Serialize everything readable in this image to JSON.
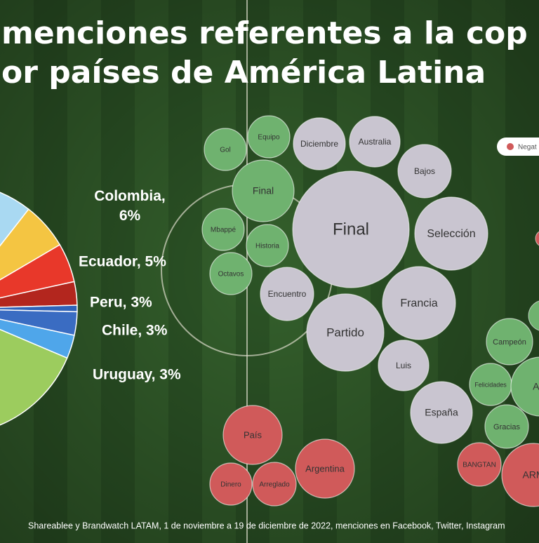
{
  "title": [
    "menciones referentes a la cop",
    "or países de América Latina"
  ],
  "chart_data": {
    "type": "pie",
    "categories": [
      "Colombia",
      "Ecuador",
      "Peru",
      "Chile",
      "Uruguay"
    ],
    "values": [
      6,
      5,
      3,
      3,
      3
    ],
    "value_labels": [
      "Colombia,\n6%",
      "Ecuador, 5%",
      "Peru, 3%",
      "Chile, 3%",
      "Uruguay, 3%"
    ],
    "colors": [
      "#f4c542",
      "#e8382a",
      "#b3261e",
      "#3a6cc2",
      "#4fa6ea"
    ]
  },
  "bubbles": {
    "legend": "Negat",
    "groups": {
      "positive": "#6fb26f",
      "neutral": "#c9c5d0",
      "negative": "#d05a5a"
    },
    "items": [
      {
        "label": "Gol",
        "group": "positive"
      },
      {
        "label": "Equipo",
        "group": "positive"
      },
      {
        "label": "Final",
        "group": "positive"
      },
      {
        "label": "Mbappé",
        "group": "positive"
      },
      {
        "label": "Historia",
        "group": "positive"
      },
      {
        "label": "Octavos",
        "group": "positive"
      },
      {
        "label": "Diciembre",
        "group": "neutral"
      },
      {
        "label": "Australia",
        "group": "neutral"
      },
      {
        "label": "Bajos",
        "group": "neutral"
      },
      {
        "label": "Final",
        "group": "neutral"
      },
      {
        "label": "Selección",
        "group": "neutral"
      },
      {
        "label": "Encuentro",
        "group": "neutral"
      },
      {
        "label": "Francia",
        "group": "neutral"
      },
      {
        "label": "Partido",
        "group": "neutral"
      },
      {
        "label": "Luis",
        "group": "neutral"
      },
      {
        "label": "España",
        "group": "neutral"
      },
      {
        "label": "Campeón",
        "group": "positive"
      },
      {
        "label": "Felicidades",
        "group": "positive"
      },
      {
        "label": "Arg",
        "group": "positive"
      },
      {
        "label": "Gracias",
        "group": "positive"
      },
      {
        "label": "País",
        "group": "negative"
      },
      {
        "label": "Dinero",
        "group": "negative"
      },
      {
        "label": "Arreglado",
        "group": "negative"
      },
      {
        "label": "Argentina",
        "group": "negative"
      },
      {
        "label": "BANGTAN",
        "group": "negative"
      },
      {
        "label": "ARM",
        "group": "negative"
      }
    ]
  },
  "footer": "Shareablee  y Brandwatch LATAM, 1 de noviembre a 19 de diciembre de 2022, menciones en Facebook, Twitter, Instagram"
}
